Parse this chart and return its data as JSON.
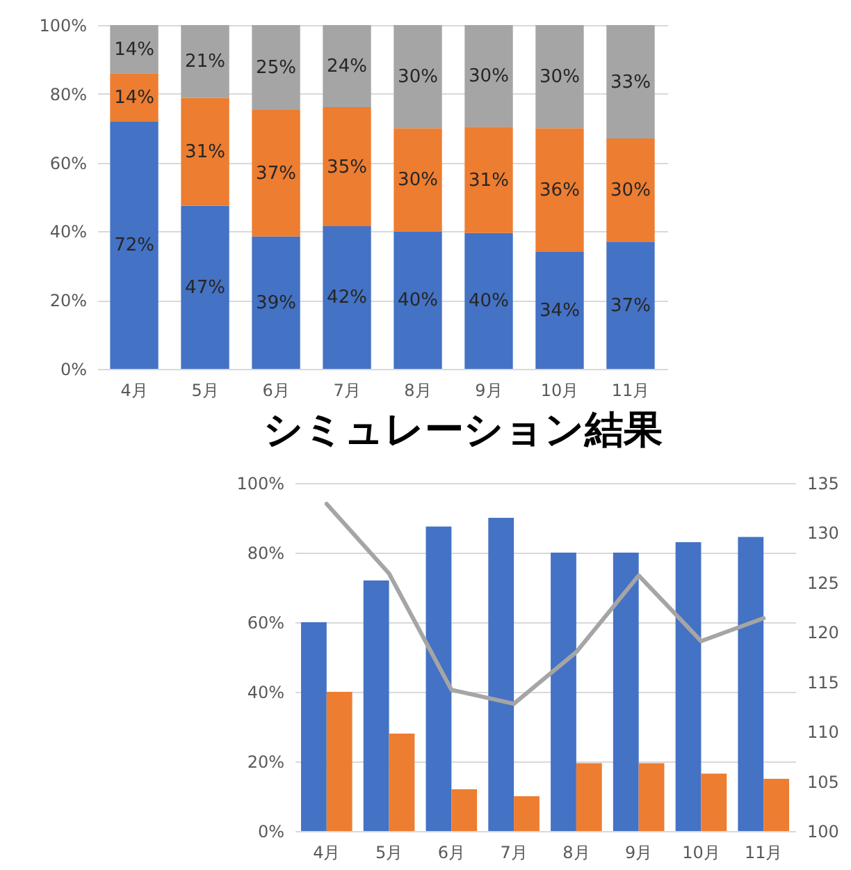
{
  "chart_data": [
    {
      "type": "bar",
      "stacked": true,
      "categories": [
        "4月",
        "5月",
        "6月",
        "7月",
        "8月",
        "9月",
        "10月",
        "11月"
      ],
      "ylim": [
        0,
        100
      ],
      "yticks": [
        {
          "value": 0,
          "label": "0%"
        },
        {
          "value": 20,
          "label": "20%"
        },
        {
          "value": 40,
          "label": "40%"
        },
        {
          "value": 60,
          "label": "60%"
        },
        {
          "value": 80,
          "label": "80%"
        },
        {
          "value": 100,
          "label": "100%"
        }
      ],
      "grid": "y",
      "annotations": [
        "シミュレーション結果"
      ],
      "series": [
        {
          "color": "#4472c4",
          "values": [
            72,
            47.4,
            38.5,
            41.5,
            40,
            39.5,
            34,
            37
          ],
          "value_labels": [
            "72%",
            "47%",
            "39%",
            "42%",
            "40%",
            "40%",
            "34%",
            "37%"
          ]
        },
        {
          "color": "#ed7d31",
          "values": [
            14,
            31.4,
            36.8,
            34.6,
            30,
            30.9,
            36,
            30
          ],
          "value_labels": [
            "14%",
            "31%",
            "37%",
            "35%",
            "30%",
            "31%",
            "36%",
            "30%"
          ]
        },
        {
          "color": "#a5a5a5",
          "values": [
            14,
            21.2,
            24.7,
            23.9,
            30,
            29.6,
            30,
            33
          ],
          "value_labels": [
            "14%",
            "21%",
            "25%",
            "24%",
            "30%",
            "30%",
            "30%",
            "33%"
          ]
        }
      ]
    },
    {
      "type": "bar",
      "categories": [
        "4月",
        "5月",
        "6月",
        "7月",
        "8月",
        "9月",
        "10月",
        "11月"
      ],
      "ylim": [
        0,
        100
      ],
      "yticks": [
        {
          "value": 0,
          "label": "0%"
        },
        {
          "value": 20,
          "label": "20%"
        },
        {
          "value": 40,
          "label": "40%"
        },
        {
          "value": 60,
          "label": "60%"
        },
        {
          "value": 80,
          "label": "80%"
        },
        {
          "value": 100,
          "label": "100%"
        }
      ],
      "y2lim": [
        100,
        135
      ],
      "y2ticks": [
        100,
        105,
        110,
        115,
        120,
        125,
        130,
        135
      ],
      "grid": "y",
      "series": [
        {
          "color": "#4472c4",
          "values": [
            60,
            72,
            87.5,
            90,
            80,
            80,
            83,
            84.5
          ]
        },
        {
          "color": "#ed7d31",
          "values": [
            40,
            28,
            12,
            10,
            19.5,
            19.5,
            16.5,
            15
          ]
        },
        {
          "type": "line",
          "axis": "y2",
          "color": "#a5a5a5",
          "values": [
            132.9,
            125.9,
            114.2,
            112.8,
            118.0,
            125.7,
            119.1,
            121.4
          ]
        }
      ]
    }
  ]
}
